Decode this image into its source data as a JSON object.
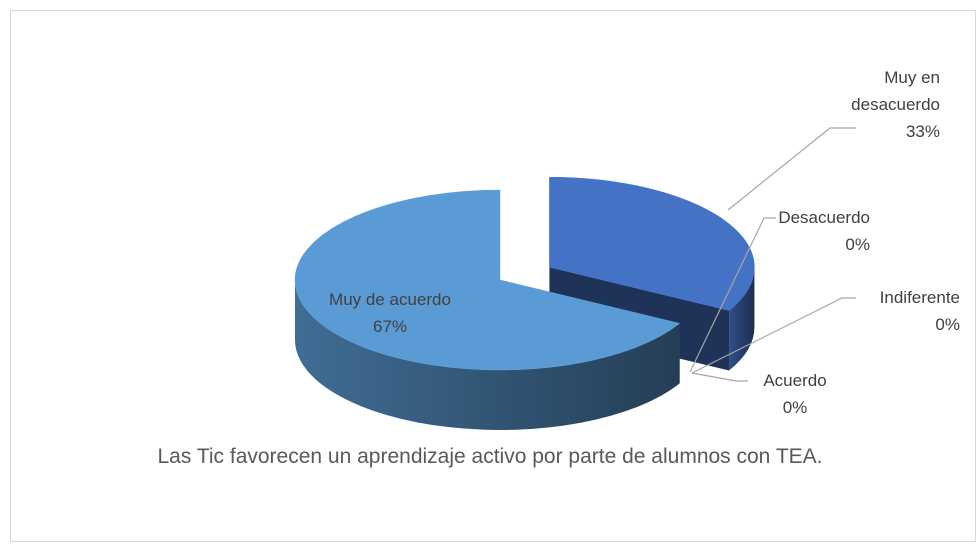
{
  "chart_data": {
    "type": "pie3d",
    "title": "Las Tic favorecen un aprendizaje activo por parte de alumnos con TEA.",
    "categories": [
      "Muy en desacuerdo",
      "Desacuerdo",
      "Indiferente",
      "Acuerdo",
      "Muy de acuerdo"
    ],
    "values": [
      33,
      0,
      0,
      0,
      67
    ],
    "value_labels": [
      "33%",
      "0%",
      "0%",
      "0%",
      "67%"
    ],
    "colors": [
      "#4472c4",
      "#ed7d31",
      "#a5a5a5",
      "#ffc000",
      "#5b9bd5"
    ]
  }
}
